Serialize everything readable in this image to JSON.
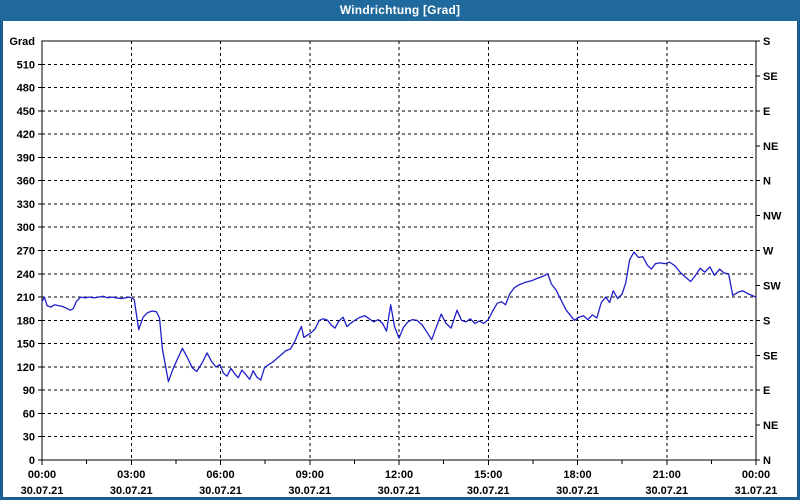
{
  "window": {
    "title": "Windrichtung [Grad]"
  },
  "colors": {
    "window_border": "#1c5f93",
    "titlebar_bg": "#20699c",
    "titlebar_text": "#ffffff",
    "plot_bg": "#ffffff",
    "grid": "#000000",
    "line": "#1f1fc8"
  },
  "chart_data": {
    "type": "line",
    "title": "Windrichtung [Grad]",
    "ylabel": "Grad",
    "ylim": [
      0,
      540
    ],
    "xlim_hours": [
      0,
      24
    ],
    "grid": "dashed",
    "y_left_ticks": [
      0,
      30,
      60,
      90,
      120,
      150,
      180,
      210,
      240,
      270,
      300,
      330,
      360,
      390,
      420,
      450,
      480,
      510
    ],
    "y_right_ticks": [
      {
        "deg": 0,
        "label": "N"
      },
      {
        "deg": 45,
        "label": "NE"
      },
      {
        "deg": 90,
        "label": "E"
      },
      {
        "deg": 135,
        "label": "SE"
      },
      {
        "deg": 180,
        "label": "S"
      },
      {
        "deg": 225,
        "label": "SW"
      },
      {
        "deg": 270,
        "label": "W"
      },
      {
        "deg": 315,
        "label": "NW"
      },
      {
        "deg": 360,
        "label": "N"
      },
      {
        "deg": 405,
        "label": "NE"
      },
      {
        "deg": 450,
        "label": "E"
      },
      {
        "deg": 495,
        "label": "SE"
      },
      {
        "deg": 540,
        "label": "S"
      }
    ],
    "x_ticks": [
      {
        "hours": 0,
        "time": "00:00",
        "date": "30.07.21"
      },
      {
        "hours": 3,
        "time": "03:00",
        "date": "30.07.21"
      },
      {
        "hours": 6,
        "time": "06:00",
        "date": "30.07.21"
      },
      {
        "hours": 9,
        "time": "09:00",
        "date": "30.07.21"
      },
      {
        "hours": 12,
        "time": "12:00",
        "date": "30.07.21"
      },
      {
        "hours": 15,
        "time": "15:00",
        "date": "30.07.21"
      },
      {
        "hours": 18,
        "time": "18:00",
        "date": "30.07.21"
      },
      {
        "hours": 21,
        "time": "21:00",
        "date": "30.07.21"
      },
      {
        "hours": 24,
        "time": "00:00",
        "date": "31.07.21"
      }
    ],
    "x_minor_tick_hours": [
      1.5,
      4.5,
      7.5,
      10.5,
      13.5,
      16.5,
      19.5,
      22.5
    ],
    "series": [
      {
        "name": "Windrichtung",
        "color": "#1f1fc8",
        "points": [
          [
            0.0,
            204
          ],
          [
            0.08,
            210
          ],
          [
            0.17,
            199
          ],
          [
            0.3,
            197
          ],
          [
            0.42,
            200
          ],
          [
            0.55,
            199
          ],
          [
            0.68,
            198
          ],
          [
            0.8,
            196
          ],
          [
            0.95,
            193
          ],
          [
            1.05,
            195
          ],
          [
            1.15,
            204
          ],
          [
            1.3,
            210
          ],
          [
            1.45,
            209
          ],
          [
            1.6,
            210
          ],
          [
            1.75,
            209
          ],
          [
            1.9,
            210
          ],
          [
            2.05,
            211
          ],
          [
            2.2,
            209
          ],
          [
            2.35,
            210
          ],
          [
            2.5,
            209
          ],
          [
            2.65,
            208
          ],
          [
            2.8,
            209
          ],
          [
            2.95,
            210
          ],
          [
            3.1,
            207
          ],
          [
            3.25,
            168
          ],
          [
            3.4,
            184
          ],
          [
            3.55,
            190
          ],
          [
            3.7,
            192
          ],
          [
            3.85,
            191
          ],
          [
            3.95,
            183
          ],
          [
            4.05,
            142
          ],
          [
            4.25,
            101
          ],
          [
            4.4,
            117
          ],
          [
            4.55,
            130
          ],
          [
            4.72,
            144
          ],
          [
            4.9,
            131
          ],
          [
            5.05,
            119
          ],
          [
            5.2,
            114
          ],
          [
            5.38,
            125
          ],
          [
            5.55,
            138
          ],
          [
            5.7,
            127
          ],
          [
            5.85,
            120
          ],
          [
            5.98,
            123
          ],
          [
            6.1,
            112
          ],
          [
            6.22,
            108
          ],
          [
            6.35,
            118
          ],
          [
            6.48,
            111
          ],
          [
            6.6,
            106
          ],
          [
            6.72,
            116
          ],
          [
            6.85,
            110
          ],
          [
            6.98,
            104
          ],
          [
            7.1,
            115
          ],
          [
            7.22,
            107
          ],
          [
            7.35,
            103
          ],
          [
            7.48,
            119
          ],
          [
            7.62,
            123
          ],
          [
            7.75,
            126
          ],
          [
            7.9,
            131
          ],
          [
            8.05,
            136
          ],
          [
            8.2,
            141
          ],
          [
            8.35,
            143
          ],
          [
            8.5,
            153
          ],
          [
            8.62,
            164
          ],
          [
            8.72,
            172
          ],
          [
            8.8,
            158
          ],
          [
            8.92,
            161
          ],
          [
            9.05,
            164
          ],
          [
            9.18,
            169
          ],
          [
            9.32,
            180
          ],
          [
            9.45,
            182
          ],
          [
            9.6,
            180
          ],
          [
            9.72,
            174
          ],
          [
            9.85,
            170
          ],
          [
            9.98,
            179
          ],
          [
            10.12,
            184
          ],
          [
            10.25,
            172
          ],
          [
            10.4,
            177
          ],
          [
            10.55,
            181
          ],
          [
            10.7,
            184
          ],
          [
            10.85,
            186
          ],
          [
            11.0,
            182
          ],
          [
            11.15,
            178
          ],
          [
            11.3,
            181
          ],
          [
            11.45,
            176
          ],
          [
            11.58,
            166
          ],
          [
            11.72,
            200
          ],
          [
            11.85,
            172
          ],
          [
            12.0,
            157
          ],
          [
            12.15,
            171
          ],
          [
            12.3,
            178
          ],
          [
            12.45,
            181
          ],
          [
            12.6,
            180
          ],
          [
            12.78,
            174
          ],
          [
            12.95,
            164
          ],
          [
            13.1,
            155
          ],
          [
            13.25,
            171
          ],
          [
            13.42,
            188
          ],
          [
            13.58,
            176
          ],
          [
            13.75,
            170
          ],
          [
            13.95,
            193
          ],
          [
            14.1,
            180
          ],
          [
            14.25,
            178
          ],
          [
            14.4,
            182
          ],
          [
            14.55,
            176
          ],
          [
            14.7,
            179
          ],
          [
            14.85,
            176
          ],
          [
            15.0,
            181
          ],
          [
            15.15,
            192
          ],
          [
            15.3,
            202
          ],
          [
            15.45,
            204
          ],
          [
            15.58,
            200
          ],
          [
            15.72,
            214
          ],
          [
            15.88,
            222
          ],
          [
            16.05,
            226
          ],
          [
            16.25,
            229
          ],
          [
            16.45,
            231
          ],
          [
            16.65,
            234
          ],
          [
            16.85,
            237
          ],
          [
            17.0,
            240
          ],
          [
            17.12,
            227
          ],
          [
            17.28,
            219
          ],
          [
            17.45,
            206
          ],
          [
            17.62,
            193
          ],
          [
            17.9,
            180
          ],
          [
            18.05,
            184
          ],
          [
            18.2,
            186
          ],
          [
            18.35,
            181
          ],
          [
            18.5,
            187
          ],
          [
            18.65,
            183
          ],
          [
            18.8,
            203
          ],
          [
            18.95,
            210
          ],
          [
            19.08,
            203
          ],
          [
            19.2,
            218
          ],
          [
            19.35,
            208
          ],
          [
            19.5,
            214
          ],
          [
            19.62,
            228
          ],
          [
            19.75,
            258
          ],
          [
            19.9,
            268
          ],
          [
            20.05,
            261
          ],
          [
            20.2,
            262
          ],
          [
            20.35,
            251
          ],
          [
            20.48,
            246
          ],
          [
            20.62,
            253
          ],
          [
            20.78,
            254
          ],
          [
            20.95,
            253
          ],
          [
            21.1,
            255
          ],
          [
            21.28,
            250
          ],
          [
            21.45,
            242
          ],
          [
            21.62,
            236
          ],
          [
            21.8,
            230
          ],
          [
            21.95,
            237
          ],
          [
            22.12,
            247
          ],
          [
            22.28,
            242
          ],
          [
            22.45,
            249
          ],
          [
            22.6,
            238
          ],
          [
            22.78,
            246
          ],
          [
            22.92,
            241
          ],
          [
            23.08,
            240
          ],
          [
            23.22,
            212
          ],
          [
            23.38,
            216
          ],
          [
            23.55,
            218
          ],
          [
            23.75,
            214
          ],
          [
            24.0,
            210
          ]
        ]
      }
    ]
  }
}
